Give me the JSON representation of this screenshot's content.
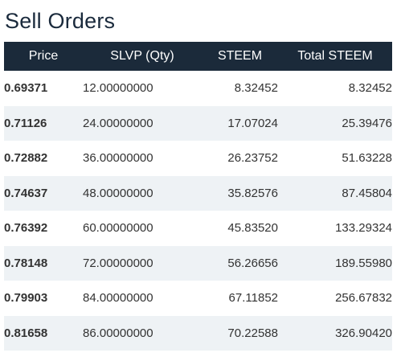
{
  "title": "Sell Orders",
  "columns": [
    "Price",
    "SLVP (Qty)",
    "STEEM",
    "Total STEEM"
  ],
  "rows": [
    {
      "price": "0.69371",
      "qty": "12.00000000",
      "steem": "8.32452",
      "total": "8.32452"
    },
    {
      "price": "0.71126",
      "qty": "24.00000000",
      "steem": "17.07024",
      "total": "25.39476"
    },
    {
      "price": "0.72882",
      "qty": "36.00000000",
      "steem": "26.23752",
      "total": "51.63228"
    },
    {
      "price": "0.74637",
      "qty": "48.00000000",
      "steem": "35.82576",
      "total": "87.45804"
    },
    {
      "price": "0.76392",
      "qty": "60.00000000",
      "steem": "45.83520",
      "total": "133.29324"
    },
    {
      "price": "0.78148",
      "qty": "72.00000000",
      "steem": "56.26656",
      "total": "189.55980"
    },
    {
      "price": "0.79903",
      "qty": "84.00000000",
      "steem": "67.11852",
      "total": "256.67832"
    },
    {
      "price": "0.81658",
      "qty": "86.00000000",
      "steem": "70.22588",
      "total": "326.90420"
    }
  ],
  "colors": {
    "header_bg": "#1b2a3a",
    "row_alt_bg": "#eef2f5",
    "title_color": "#1a2a3c"
  }
}
